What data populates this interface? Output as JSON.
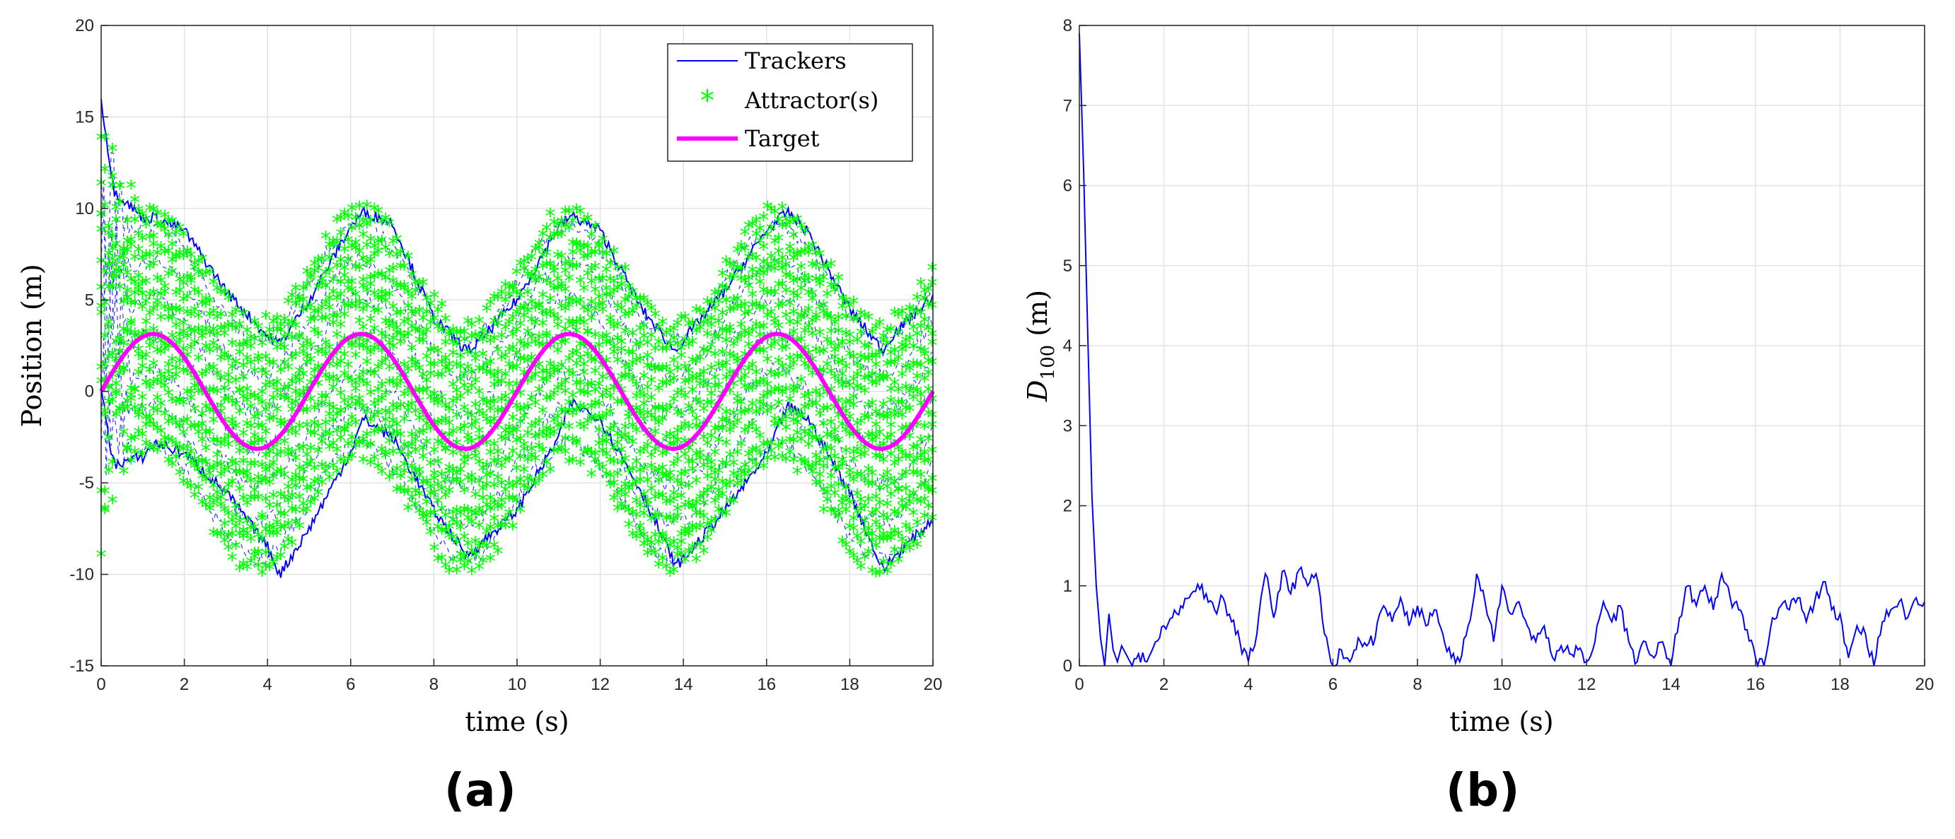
{
  "panel_labels": {
    "a": "(a)",
    "b": "(b)"
  },
  "colors": {
    "trackers": "#0000ff",
    "attractors": "#00ff00",
    "target": "#ff00ff",
    "grid": "#e3e3e3",
    "axes": "#262626"
  },
  "chart_data": [
    {
      "id": "a",
      "type": "line",
      "xlabel": "time (s)",
      "ylabel": "Position (m)",
      "xlim": [
        0,
        20
      ],
      "ylim": [
        -15,
        20
      ],
      "xticks": [
        "0",
        "2",
        "4",
        "6",
        "8",
        "10",
        "12",
        "14",
        "16",
        "18",
        "20"
      ],
      "yticks": [
        "-15",
        "-10",
        "-5",
        "0",
        "5",
        "10",
        "15",
        "20"
      ],
      "grid": true,
      "legend_position": "top-right",
      "legend": [
        "Trackers",
        "Attractor(s)",
        "Target"
      ],
      "target": {
        "amplitude": 3.14,
        "period": 5,
        "phase": 0,
        "description": "sine wave starting at 0"
      },
      "trackers_envelope": {
        "x": [
          0,
          0.3,
          1,
          1.3,
          2,
          3,
          4,
          4.3,
          5,
          6,
          6.3,
          7,
          8,
          8.8,
          9,
          10,
          11,
          11.3,
          12,
          13,
          13.8,
          14,
          15,
          16,
          16.5,
          17,
          18,
          18.8,
          19,
          20
        ],
        "upper": [
          16,
          11,
          9.5,
          9.5,
          8.8,
          5.5,
          3,
          2.6,
          5,
          9,
          9.8,
          9.2,
          4,
          2.2,
          2.5,
          5,
          9,
          9.6,
          8.8,
          4.5,
          2.2,
          2.8,
          5.5,
          8.8,
          9.8,
          8.7,
          4.5,
          2.2,
          3,
          5.2
        ],
        "lower": [
          0,
          -4,
          -3.6,
          -2.8,
          -3.4,
          -5.5,
          -8.5,
          -10,
          -7.5,
          -3.3,
          -1.5,
          -2.5,
          -6.5,
          -9,
          -8.6,
          -6.5,
          -2.5,
          -0.6,
          -1.5,
          -5.5,
          -9.5,
          -9.2,
          -6.5,
          -3.5,
          -0.8,
          -1.5,
          -5.5,
          -9.8,
          -9.2,
          -7
        ]
      },
      "attractor_bands": {
        "count": 13,
        "offset_range": [
          -6.5,
          6.5
        ],
        "description": "13 green star-marked bands oscillating with the target between the tracker envelope"
      }
    },
    {
      "id": "b",
      "type": "line",
      "xlabel": "time (s)",
      "ylabel": "D",
      "ylabel_subscript": "100",
      "ylabel_unit": " (m)",
      "xlim": [
        0,
        20
      ],
      "ylim": [
        0,
        8
      ],
      "xticks": [
        "0",
        "2",
        "4",
        "6",
        "8",
        "10",
        "12",
        "14",
        "16",
        "18",
        "20"
      ],
      "yticks": [
        "0",
        "1",
        "2",
        "3",
        "4",
        "5",
        "6",
        "7",
        "8"
      ],
      "grid": true,
      "series": [
        {
          "x": [
            0,
            0.1,
            0.2,
            0.3,
            0.4,
            0.5,
            0.6,
            0.7,
            0.8,
            0.9,
            1.0,
            1.2,
            1.4,
            1.6,
            1.8,
            2.0,
            2.2,
            2.4,
            2.6,
            2.8,
            3.0,
            3.2,
            3.4,
            3.6,
            3.8,
            4.0,
            4.2,
            4.4,
            4.6,
            4.8,
            5.0,
            5.2,
            5.4,
            5.6,
            5.8,
            6.0,
            6.2,
            6.4,
            6.6,
            6.8,
            7.0,
            7.2,
            7.4,
            7.6,
            7.8,
            8.0,
            8.2,
            8.4,
            8.6,
            8.8,
            9.0,
            9.2,
            9.4,
            9.6,
            9.8,
            10.0,
            10.2,
            10.4,
            10.6,
            10.8,
            11.0,
            11.2,
            11.4,
            11.6,
            11.8,
            12.0,
            12.2,
            12.4,
            12.6,
            12.8,
            13.0,
            13.2,
            13.4,
            13.6,
            13.8,
            14.0,
            14.2,
            14.4,
            14.6,
            14.8,
            15.0,
            15.2,
            15.4,
            15.6,
            15.8,
            16.0,
            16.2,
            16.4,
            16.6,
            16.8,
            17.0,
            17.2,
            17.4,
            17.6,
            17.8,
            18.0,
            18.2,
            18.4,
            18.6,
            18.8,
            19.0,
            19.2,
            19.4,
            19.6,
            19.8,
            20.0
          ],
          "values": [
            7.9,
            6.2,
            4.1,
            2.1,
            1.0,
            0.35,
            0.0,
            0.65,
            0.2,
            0.05,
            0.25,
            0.05,
            0.15,
            0.05,
            0.3,
            0.5,
            0.6,
            0.75,
            0.85,
            1.02,
            0.9,
            0.7,
            0.85,
            0.55,
            0.3,
            0.05,
            0.4,
            1.15,
            0.6,
            1.18,
            0.9,
            1.2,
            1.0,
            1.15,
            0.4,
            0.0,
            0.2,
            0.05,
            0.35,
            0.25,
            0.35,
            0.75,
            0.55,
            0.85,
            0.5,
            0.75,
            0.5,
            0.7,
            0.4,
            0.1,
            0.05,
            0.5,
            1.15,
            0.8,
            0.3,
            1.0,
            0.65,
            0.8,
            0.5,
            0.3,
            0.5,
            0.1,
            0.25,
            0.15,
            0.2,
            0.05,
            0.3,
            0.8,
            0.55,
            0.75,
            0.3,
            0.05,
            0.3,
            0.1,
            0.3,
            0.0,
            0.6,
            1.0,
            0.75,
            1.0,
            0.7,
            1.15,
            0.85,
            0.7,
            0.45,
            0.1,
            0.0,
            0.6,
            0.75,
            0.7,
            0.85,
            0.55,
            0.8,
            1.05,
            0.7,
            0.65,
            0.1,
            0.5,
            0.4,
            0.0,
            0.55,
            0.7,
            0.8,
            0.6,
            0.85,
            0.8
          ]
        }
      ]
    }
  ]
}
